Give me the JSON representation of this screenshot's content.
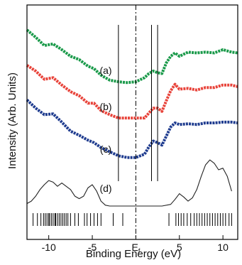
{
  "chart_data": {
    "type": "line",
    "xlabel": "Binding Energy (eV)",
    "ylabel": "Intensity (Arb. Units)",
    "xlim": [
      -12.5,
      11.7
    ],
    "ylim": [
      0,
      12
    ],
    "grid": false,
    "x_ticks": [
      {
        "value": -10,
        "label": "-10"
      },
      {
        "value": -5,
        "label": "-5"
      },
      {
        "value": 0,
        "label": "E"
      },
      {
        "value": 5,
        "label": "5"
      },
      {
        "value": 10,
        "label": "10"
      }
    ],
    "fermi_level": {
      "x": 0,
      "label": "E",
      "subscript": "f"
    },
    "vertical_markers": [
      -2.0,
      1.8,
      2.5
    ],
    "colors": {
      "a": "#1a9a4a",
      "b": "#e8433a",
      "c": "#1f3c8f",
      "d": "#222222",
      "axis": "#000000"
    },
    "series": [
      {
        "name": "(a)",
        "x": [
          -12.5,
          -11.5,
          -10.5,
          -9.5,
          -8.5,
          -7.5,
          -6.5,
          -5.5,
          -4.8,
          -4.0,
          -3.0,
          -2.0,
          -1.0,
          0.0,
          1.0,
          1.5,
          2.0,
          2.5,
          3.0,
          3.5,
          4.0,
          4.5,
          5.0,
          6.0,
          7.0,
          8.0,
          9.0,
          10.0,
          11.0,
          11.7
        ],
        "y": [
          10.7,
          10.25,
          9.75,
          9.85,
          9.5,
          9.1,
          8.9,
          8.5,
          8.35,
          7.95,
          7.65,
          7.55,
          7.5,
          7.55,
          7.8,
          8.05,
          8.2,
          8.1,
          8.05,
          8.7,
          9.1,
          9.3,
          9.1,
          9.35,
          9.3,
          9.35,
          9.3,
          9.5,
          9.35,
          9.3
        ]
      },
      {
        "name": "(b)",
        "x": [
          -12.5,
          -11.5,
          -10.5,
          -9.5,
          -8.5,
          -7.5,
          -6.5,
          -5.5,
          -4.8,
          -4.0,
          -3.0,
          -2.0,
          -1.0,
          0.0,
          1.0,
          1.5,
          2.0,
          2.5,
          3.0,
          3.5,
          4.0,
          4.5,
          5.0,
          6.0,
          7.0,
          8.0,
          9.0,
          10.0,
          11.0,
          11.7
        ],
        "y": [
          8.55,
          8.2,
          7.7,
          7.8,
          7.35,
          6.95,
          6.7,
          6.25,
          6.25,
          5.8,
          5.55,
          5.35,
          5.35,
          5.35,
          5.35,
          5.65,
          5.95,
          5.95,
          5.75,
          6.4,
          7.0,
          7.4,
          7.1,
          7.15,
          7.05,
          7.2,
          7.2,
          7.35,
          7.35,
          7.25
        ]
      },
      {
        "name": "(c)",
        "x": [
          -12.5,
          -11.5,
          -10.5,
          -9.5,
          -8.5,
          -7.5,
          -6.5,
          -5.5,
          -4.8,
          -4.0,
          -3.0,
          -2.0,
          -1.0,
          0.0,
          1.0,
          1.5,
          2.0,
          2.5,
          3.0,
          3.5,
          4.0,
          4.5,
          5.0,
          6.0,
          7.0,
          8.0,
          9.0,
          10.0,
          11.0,
          11.7
        ],
        "y": [
          6.45,
          5.95,
          5.55,
          5.6,
          5.1,
          4.55,
          4.3,
          4.0,
          3.85,
          3.55,
          3.3,
          3.05,
          2.95,
          2.95,
          3.15,
          3.6,
          3.95,
          3.85,
          3.7,
          4.25,
          4.8,
          5.05,
          4.95,
          5.0,
          4.95,
          5.05,
          5.05,
          5.1,
          5.1,
          5.05
        ]
      },
      {
        "name": "(d)",
        "x": [
          -12.5,
          -12.0,
          -11.5,
          -11.0,
          -10.5,
          -10.0,
          -9.5,
          -9.0,
          -8.5,
          -8.0,
          -7.5,
          -7.0,
          -6.5,
          -6.0,
          -5.5,
          -5.0,
          -4.5,
          -4.0,
          -3.5,
          -3.0,
          -2.5,
          -2.0,
          -1.0,
          0.0,
          1.0,
          2.0,
          3.0,
          4.0,
          4.5,
          5.0,
          5.5,
          6.0,
          6.5,
          7.0,
          7.5,
          8.0,
          8.5,
          9.0,
          9.5,
          10.0,
          10.5,
          11.0
        ],
        "y": [
          0.15,
          0.3,
          0.6,
          1.0,
          1.3,
          1.55,
          1.45,
          1.2,
          1.4,
          1.2,
          1.0,
          0.6,
          0.45,
          0.6,
          1.1,
          1.3,
          0.9,
          0.3,
          0.05,
          0.0,
          0.0,
          0.0,
          0.0,
          0.0,
          0.0,
          0.0,
          0.0,
          0.1,
          0.4,
          0.75,
          0.55,
          0.3,
          0.5,
          1.0,
          1.8,
          2.5,
          2.8,
          2.6,
          2.2,
          2.3,
          1.8,
          0.9
        ]
      }
    ],
    "eigenvalue_ticks": [
      -11.8,
      -11.3,
      -10.9,
      -10.6,
      -10.4,
      -10.2,
      -10.0,
      -9.9,
      -9.7,
      -9.5,
      -9.3,
      -9.2,
      -9.0,
      -8.8,
      -8.6,
      -8.4,
      -8.2,
      -8.0,
      -7.8,
      -7.5,
      -7.0,
      -6.6,
      -5.9,
      -5.6,
      -5.2,
      -4.8,
      -4.4,
      -4.0,
      -2.6,
      -1.5,
      3.8,
      4.6,
      4.9,
      5.2,
      5.5,
      5.9,
      6.3,
      6.7,
      7.0,
      7.3,
      7.6,
      7.9,
      8.2,
      8.5,
      8.8,
      9.1,
      9.4,
      9.7,
      10.0,
      10.3,
      10.7,
      11.0
    ]
  }
}
